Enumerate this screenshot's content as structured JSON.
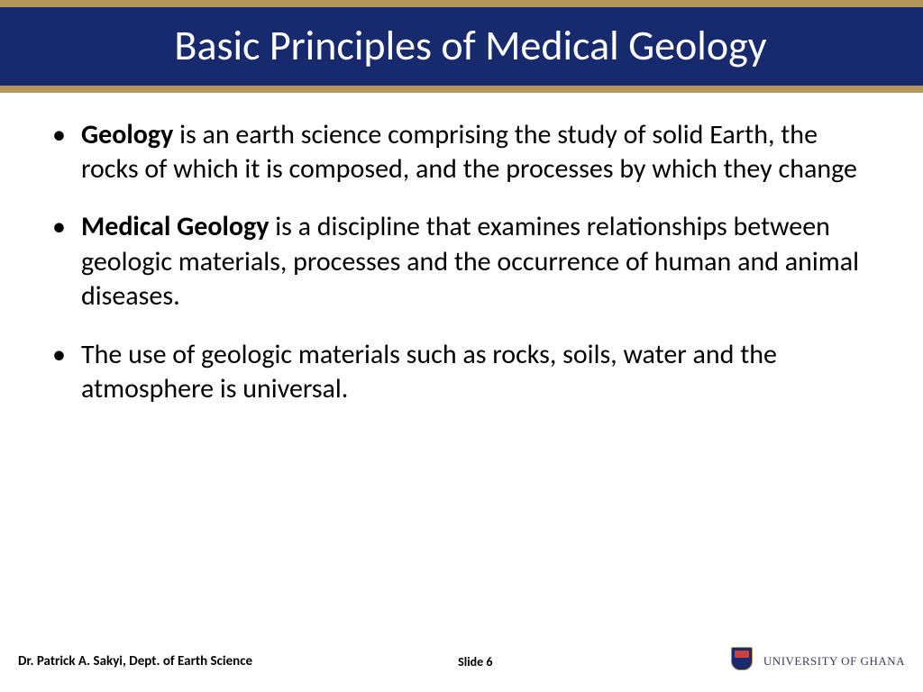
{
  "colors": {
    "gold": "#b5965a",
    "navy": "#172a6e",
    "title_text": "#ffffff",
    "body_text": "#000000",
    "background": "#ffffff"
  },
  "header": {
    "title": "Basic Principles of Medical Geology"
  },
  "bullets": [
    {
      "lead": "Geology",
      "rest": " is an earth science comprising the study of solid Earth, the rocks of which it is composed, and the processes by which they change"
    },
    {
      "lead": "Medical Geology",
      "rest": " is a discipline that examines relationships between geologic materials, processes and the occurrence of human and animal diseases."
    },
    {
      "lead": "",
      "rest": "The use of geologic materials such as  rocks, soils, water and the atmosphere is universal."
    }
  ],
  "footer": {
    "author": "Dr. Patrick A. Sakyi, Dept. of Earth Science",
    "slide_label": "Slide 6",
    "university": "UNIVERSITY OF GHANA"
  },
  "typography": {
    "title_fontsize": 46,
    "body_fontsize": 30,
    "footer_fontsize": 15
  }
}
